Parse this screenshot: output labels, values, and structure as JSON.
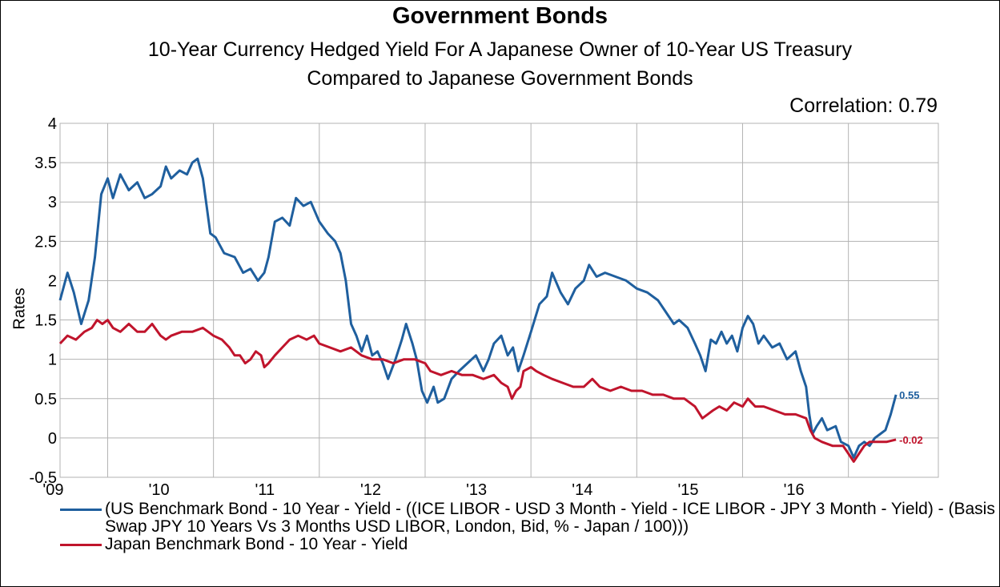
{
  "colors": {
    "us_hedged": "#1f5f9e",
    "japan": "#c0142c",
    "grid": "#b3b3b3"
  },
  "chart_data": {
    "type": "line",
    "title": "Government Bonds",
    "subtitle_lines": [
      "10-Year Currency Hedged Yield For A Japanese Owner of 10-Year US Treasury",
      "Compared to Japanese Government Bonds"
    ],
    "annotation": "Correlation: 0.79",
    "ylabel": "Rates",
    "xlabel": "",
    "ylim": [
      -0.5,
      4
    ],
    "xlim": [
      2008.55,
      2016.85
    ],
    "y_ticks": [
      -0.5,
      0,
      0.5,
      1,
      1.5,
      2,
      2.5,
      3,
      3.5,
      4
    ],
    "y_tick_labels": [
      "-0.5",
      "0",
      "0.5",
      "1",
      "1.5",
      "2",
      "2.5",
      "3",
      "3.5",
      "4"
    ],
    "x_ticks": [
      2009,
      2010,
      2011,
      2012,
      2013,
      2014,
      2015,
      2016
    ],
    "x_tick_labels": [
      "'09",
      "'10",
      "'11",
      "'12",
      "'13",
      "'14",
      "'15",
      "'16"
    ],
    "grid": true,
    "legend_position": "bottom",
    "series": [
      {
        "name": "(US Benchmark Bond - 10 Year - Yield - ((ICE LIBOR - USD 3 Month - Yield - ICE LIBOR - JPY 3 Month - Yield) - (Basis Swap JPY 10 Years Vs 3 Months USD LIBOR, London, Bid, % - Japan / 100)))",
        "end_label": "0.55",
        "points": [
          [
            2008.55,
            1.75
          ],
          [
            2008.62,
            2.1
          ],
          [
            2008.68,
            1.85
          ],
          [
            2008.75,
            1.45
          ],
          [
            2008.82,
            1.75
          ],
          [
            2008.88,
            2.3
          ],
          [
            2008.94,
            3.1
          ],
          [
            2009.0,
            3.3
          ],
          [
            2009.05,
            3.05
          ],
          [
            2009.12,
            3.35
          ],
          [
            2009.2,
            3.15
          ],
          [
            2009.28,
            3.25
          ],
          [
            2009.35,
            3.05
          ],
          [
            2009.42,
            3.1
          ],
          [
            2009.5,
            3.2
          ],
          [
            2009.55,
            3.45
          ],
          [
            2009.6,
            3.3
          ],
          [
            2009.68,
            3.4
          ],
          [
            2009.75,
            3.35
          ],
          [
            2009.8,
            3.5
          ],
          [
            2009.85,
            3.55
          ],
          [
            2009.9,
            3.3
          ],
          [
            2009.93,
            3.0
          ],
          [
            2009.97,
            2.6
          ],
          [
            2010.02,
            2.55
          ],
          [
            2010.1,
            2.35
          ],
          [
            2010.2,
            2.3
          ],
          [
            2010.28,
            2.1
          ],
          [
            2010.35,
            2.15
          ],
          [
            2010.42,
            2.0
          ],
          [
            2010.48,
            2.1
          ],
          [
            2010.52,
            2.3
          ],
          [
            2010.58,
            2.75
          ],
          [
            2010.65,
            2.8
          ],
          [
            2010.72,
            2.7
          ],
          [
            2010.78,
            3.05
          ],
          [
            2010.85,
            2.95
          ],
          [
            2010.92,
            3.0
          ],
          [
            2011.0,
            2.75
          ],
          [
            2011.08,
            2.6
          ],
          [
            2011.15,
            2.5
          ],
          [
            2011.2,
            2.35
          ],
          [
            2011.25,
            2.0
          ],
          [
            2011.3,
            1.45
          ],
          [
            2011.35,
            1.3
          ],
          [
            2011.4,
            1.1
          ],
          [
            2011.45,
            1.3
          ],
          [
            2011.5,
            1.05
          ],
          [
            2011.55,
            1.1
          ],
          [
            2011.6,
            0.95
          ],
          [
            2011.65,
            0.75
          ],
          [
            2011.72,
            1.0
          ],
          [
            2011.78,
            1.25
          ],
          [
            2011.82,
            1.45
          ],
          [
            2011.88,
            1.2
          ],
          [
            2011.92,
            1.0
          ],
          [
            2011.97,
            0.6
          ],
          [
            2012.02,
            0.45
          ],
          [
            2012.08,
            0.65
          ],
          [
            2012.12,
            0.45
          ],
          [
            2012.18,
            0.5
          ],
          [
            2012.25,
            0.75
          ],
          [
            2012.32,
            0.85
          ],
          [
            2012.4,
            0.95
          ],
          [
            2012.48,
            1.05
          ],
          [
            2012.55,
            0.85
          ],
          [
            2012.6,
            1.0
          ],
          [
            2012.65,
            1.2
          ],
          [
            2012.72,
            1.3
          ],
          [
            2012.78,
            1.05
          ],
          [
            2012.83,
            1.15
          ],
          [
            2012.88,
            0.85
          ],
          [
            2012.93,
            1.05
          ],
          [
            2013.0,
            1.35
          ],
          [
            2013.08,
            1.7
          ],
          [
            2013.15,
            1.8
          ],
          [
            2013.2,
            2.1
          ],
          [
            2013.28,
            1.85
          ],
          [
            2013.35,
            1.7
          ],
          [
            2013.42,
            1.9
          ],
          [
            2013.5,
            2.0
          ],
          [
            2013.55,
            2.2
          ],
          [
            2013.62,
            2.05
          ],
          [
            2013.7,
            2.1
          ],
          [
            2013.8,
            2.05
          ],
          [
            2013.9,
            2.0
          ],
          [
            2014.0,
            1.9
          ],
          [
            2014.1,
            1.85
          ],
          [
            2014.2,
            1.75
          ],
          [
            2014.3,
            1.55
          ],
          [
            2014.35,
            1.45
          ],
          [
            2014.4,
            1.5
          ],
          [
            2014.48,
            1.4
          ],
          [
            2014.55,
            1.2
          ],
          [
            2014.6,
            1.05
          ],
          [
            2014.65,
            0.85
          ],
          [
            2014.7,
            1.25
          ],
          [
            2014.75,
            1.2
          ],
          [
            2014.8,
            1.35
          ],
          [
            2014.85,
            1.2
          ],
          [
            2014.9,
            1.3
          ],
          [
            2014.95,
            1.1
          ],
          [
            2015.0,
            1.4
          ],
          [
            2015.05,
            1.55
          ],
          [
            2015.1,
            1.45
          ],
          [
            2015.15,
            1.2
          ],
          [
            2015.2,
            1.3
          ],
          [
            2015.28,
            1.15
          ],
          [
            2015.35,
            1.2
          ],
          [
            2015.42,
            1.0
          ],
          [
            2015.5,
            1.1
          ],
          [
            2015.55,
            0.85
          ],
          [
            2015.6,
            0.65
          ],
          [
            2015.63,
            0.3
          ],
          [
            2015.66,
            0.05
          ],
          [
            2015.7,
            0.15
          ],
          [
            2015.75,
            0.25
          ],
          [
            2015.8,
            0.1
          ],
          [
            2015.88,
            0.15
          ],
          [
            2015.93,
            -0.05
          ],
          [
            2016.0,
            -0.1
          ],
          [
            2016.05,
            -0.25
          ],
          [
            2016.1,
            -0.1
          ],
          [
            2016.15,
            -0.05
          ],
          [
            2016.2,
            -0.1
          ],
          [
            2016.25,
            0.0
          ],
          [
            2016.3,
            0.05
          ],
          [
            2016.35,
            0.1
          ],
          [
            2016.4,
            0.3
          ],
          [
            2016.45,
            0.55
          ]
        ]
      },
      {
        "name": "Japan Benchmark Bond - 10 Year - Yield",
        "end_label": "-0.02",
        "points": [
          [
            2008.55,
            1.2
          ],
          [
            2008.62,
            1.3
          ],
          [
            2008.7,
            1.25
          ],
          [
            2008.78,
            1.35
          ],
          [
            2008.85,
            1.4
          ],
          [
            2008.9,
            1.5
          ],
          [
            2008.95,
            1.45
          ],
          [
            2009.0,
            1.5
          ],
          [
            2009.05,
            1.4
          ],
          [
            2009.12,
            1.35
          ],
          [
            2009.2,
            1.45
          ],
          [
            2009.28,
            1.35
          ],
          [
            2009.35,
            1.35
          ],
          [
            2009.42,
            1.45
          ],
          [
            2009.5,
            1.3
          ],
          [
            2009.55,
            1.25
          ],
          [
            2009.6,
            1.3
          ],
          [
            2009.7,
            1.35
          ],
          [
            2009.8,
            1.35
          ],
          [
            2009.9,
            1.4
          ],
          [
            2010.0,
            1.3
          ],
          [
            2010.08,
            1.25
          ],
          [
            2010.15,
            1.15
          ],
          [
            2010.2,
            1.05
          ],
          [
            2010.25,
            1.05
          ],
          [
            2010.3,
            0.95
          ],
          [
            2010.35,
            1.0
          ],
          [
            2010.4,
            1.1
          ],
          [
            2010.45,
            1.05
          ],
          [
            2010.48,
            0.9
          ],
          [
            2010.52,
            0.95
          ],
          [
            2010.58,
            1.05
          ],
          [
            2010.65,
            1.15
          ],
          [
            2010.72,
            1.25
          ],
          [
            2010.8,
            1.3
          ],
          [
            2010.88,
            1.25
          ],
          [
            2010.95,
            1.3
          ],
          [
            2011.0,
            1.2
          ],
          [
            2011.1,
            1.15
          ],
          [
            2011.2,
            1.1
          ],
          [
            2011.3,
            1.15
          ],
          [
            2011.4,
            1.05
          ],
          [
            2011.5,
            1.0
          ],
          [
            2011.6,
            1.0
          ],
          [
            2011.7,
            0.95
          ],
          [
            2011.8,
            1.0
          ],
          [
            2011.9,
            1.0
          ],
          [
            2012.0,
            0.95
          ],
          [
            2012.05,
            0.85
          ],
          [
            2012.15,
            0.8
          ],
          [
            2012.25,
            0.85
          ],
          [
            2012.35,
            0.8
          ],
          [
            2012.45,
            0.8
          ],
          [
            2012.55,
            0.75
          ],
          [
            2012.65,
            0.8
          ],
          [
            2012.72,
            0.7
          ],
          [
            2012.78,
            0.65
          ],
          [
            2012.82,
            0.5
          ],
          [
            2012.86,
            0.6
          ],
          [
            2012.9,
            0.65
          ],
          [
            2012.93,
            0.85
          ],
          [
            2013.0,
            0.9
          ],
          [
            2013.05,
            0.85
          ],
          [
            2013.12,
            0.8
          ],
          [
            2013.2,
            0.75
          ],
          [
            2013.3,
            0.7
          ],
          [
            2013.4,
            0.65
          ],
          [
            2013.5,
            0.65
          ],
          [
            2013.58,
            0.75
          ],
          [
            2013.65,
            0.65
          ],
          [
            2013.75,
            0.6
          ],
          [
            2013.85,
            0.65
          ],
          [
            2013.95,
            0.6
          ],
          [
            2014.05,
            0.6
          ],
          [
            2014.15,
            0.55
          ],
          [
            2014.25,
            0.55
          ],
          [
            2014.35,
            0.5
          ],
          [
            2014.45,
            0.5
          ],
          [
            2014.55,
            0.4
          ],
          [
            2014.62,
            0.25
          ],
          [
            2014.67,
            0.3
          ],
          [
            2014.72,
            0.35
          ],
          [
            2014.78,
            0.4
          ],
          [
            2014.85,
            0.35
          ],
          [
            2014.92,
            0.45
          ],
          [
            2015.0,
            0.4
          ],
          [
            2015.05,
            0.5
          ],
          [
            2015.12,
            0.4
          ],
          [
            2015.2,
            0.4
          ],
          [
            2015.3,
            0.35
          ],
          [
            2015.4,
            0.3
          ],
          [
            2015.5,
            0.3
          ],
          [
            2015.6,
            0.25
          ],
          [
            2015.64,
            0.1
          ],
          [
            2015.68,
            0.0
          ],
          [
            2015.75,
            -0.05
          ],
          [
            2015.85,
            -0.1
          ],
          [
            2015.95,
            -0.1
          ],
          [
            2016.0,
            -0.2
          ],
          [
            2016.05,
            -0.3
          ],
          [
            2016.1,
            -0.2
          ],
          [
            2016.15,
            -0.1
          ],
          [
            2016.2,
            -0.05
          ],
          [
            2016.28,
            -0.05
          ],
          [
            2016.36,
            -0.05
          ],
          [
            2016.45,
            -0.02
          ]
        ]
      }
    ]
  }
}
